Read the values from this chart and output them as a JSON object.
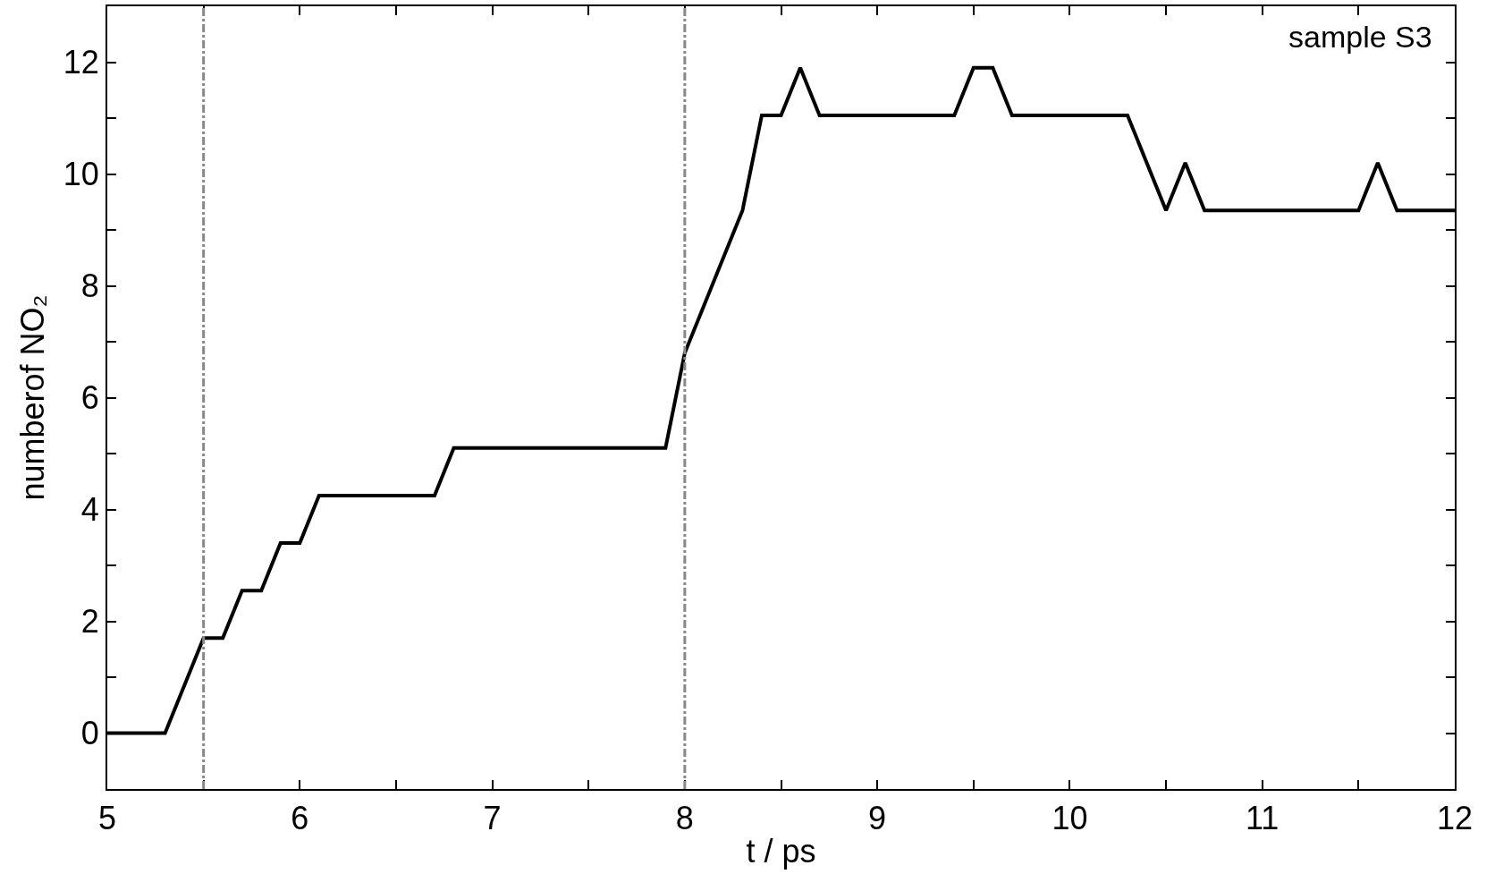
{
  "chart_data": {
    "type": "line",
    "xlabel": "t / ps",
    "ylabel": "numberof NO₂",
    "annotations": [
      "sample S3"
    ],
    "x": [
      5,
      5.3,
      5.5,
      5.6,
      5.7,
      5.8,
      5.9,
      6.0,
      6.1,
      6.7,
      6.8,
      7.9,
      8.0,
      8.3,
      8.4,
      8.5,
      8.6,
      8.7,
      9.4,
      9.5,
      9.6,
      9.7,
      10.3,
      10.5,
      10.6,
      10.7,
      11.5,
      11.6,
      11.7,
      12
    ],
    "series": [
      {
        "color": "#000000",
        "values": [
          0,
          0,
          1.7,
          1.7,
          2.55,
          2.55,
          3.4,
          3.4,
          4.25,
          4.25,
          5.1,
          5.1,
          6.8,
          9.35,
          11.05,
          11.05,
          11.9,
          11.05,
          11.05,
          11.9,
          11.9,
          11.05,
          11.05,
          9.35,
          10.2,
          9.35,
          9.35,
          10.2,
          9.35,
          9.35
        ]
      }
    ],
    "xlim": [
      5,
      12
    ],
    "ylim": [
      -1,
      13
    ],
    "xticks": [
      5,
      {
        "value": 5.5,
        "label": null
      },
      6,
      {
        "value": 6.5,
        "label": null
      },
      7,
      {
        "value": 7.5,
        "label": null
      },
      8,
      {
        "value": 8.5,
        "label": null
      },
      9,
      {
        "value": 9.5,
        "label": null
      },
      10,
      {
        "value": 10.5,
        "label": null
      },
      11,
      {
        "value": 11.5,
        "label": null
      },
      12
    ],
    "yticks": [
      {
        "value": -1,
        "label": null
      },
      0,
      {
        "value": 1,
        "label": null
      },
      2,
      {
        "value": 3,
        "label": null
      },
      4,
      {
        "value": 5,
        "label": null
      },
      6,
      {
        "value": 7,
        "label": null
      },
      8,
      {
        "value": 9,
        "label": null
      },
      10,
      {
        "value": 11,
        "label": null
      },
      12
    ],
    "ref_lines": [
      {
        "axis": "x",
        "value": 5.5,
        "color": "#888888",
        "line_style": "dashdot"
      },
      {
        "axis": "x",
        "value": 8,
        "color": "#888888",
        "line_style": "dashdot"
      }
    ],
    "marker": "none",
    "line_style": "solid"
  }
}
